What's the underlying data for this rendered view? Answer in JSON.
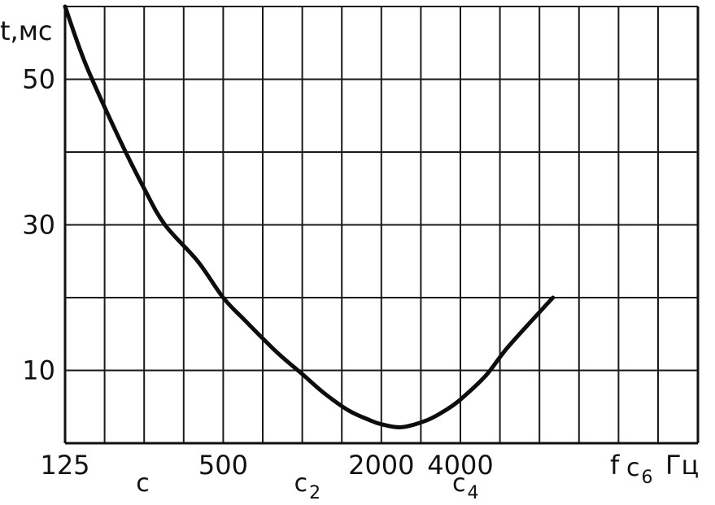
{
  "chart_data": {
    "type": "line",
    "x_scale": "log2",
    "xlim": [
      125,
      8000
    ],
    "ylim": [
      0,
      60
    ],
    "grid": true,
    "xlabel": "f",
    "xunit": "Гц",
    "ylabel": "t,мс",
    "x_tick_labels": [
      {
        "label": "125",
        "value": 125
      },
      {
        "label": "500",
        "value": 500
      },
      {
        "label": "2000",
        "value": 2000
      },
      {
        "label": "4000",
        "value": 4000
      }
    ],
    "y_tick_labels": [
      {
        "label": "50",
        "value": 50
      },
      {
        "label": "30",
        "value": 30
      },
      {
        "label": "10",
        "value": 10
      }
    ],
    "note_labels": [
      {
        "letter": "C",
        "sub": "",
        "value": 250
      },
      {
        "letter": "C",
        "sub": "2",
        "value": 1000
      },
      {
        "letter": "C",
        "sub": "4",
        "value": 4000
      },
      {
        "letter": "C",
        "sub": "6",
        "value": 16000
      }
    ],
    "series": [
      {
        "x": [
          125,
          150,
          200,
          250,
          300,
          400,
          500,
          600,
          800,
          1000,
          1200,
          1500,
          1800,
          2000,
          2400,
          3000,
          3500,
          4000,
          5000,
          6000,
          8000,
          9000
        ],
        "y": [
          60,
          52,
          42,
          35,
          30,
          25,
          20,
          17,
          12.5,
          9.5,
          7,
          4.5,
          3.2,
          2.6,
          2.2,
          3.2,
          4.5,
          6,
          9.3,
          13,
          18,
          20
        ]
      }
    ]
  }
}
